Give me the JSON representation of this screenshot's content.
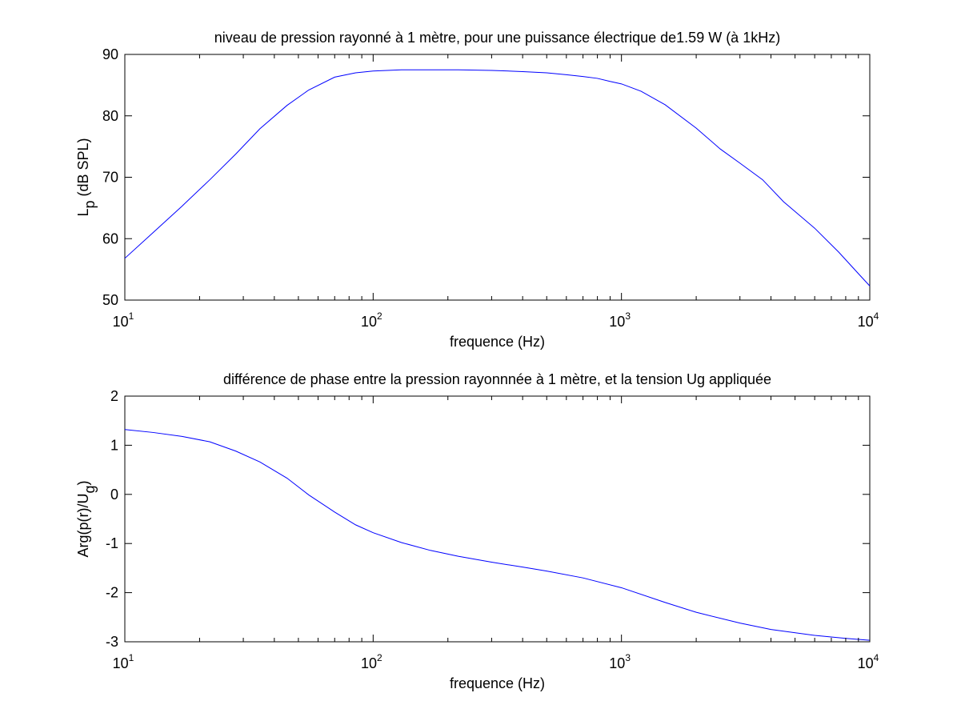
{
  "figure": {
    "background": "#ffffff",
    "axes_background": "#ffffff",
    "line_color": "#0000ff"
  },
  "chart_data": [
    {
      "type": "line",
      "title": "niveau de pression rayonné à 1 mètre, pour une puissance électrique de1.59 W (à  1kHz)",
      "xlabel": "frequence (Hz)",
      "ylabel": {
        "main": "L",
        "sub": "p",
        "rest": " (dB SPL)"
      },
      "xscale": "log",
      "xlim": [
        10,
        10000
      ],
      "ylim": [
        50,
        90
      ],
      "grid": false,
      "xticks": [
        {
          "value": 10,
          "base": "10",
          "exp": "1"
        },
        {
          "value": 100,
          "base": "10",
          "exp": "2"
        },
        {
          "value": 1000,
          "base": "10",
          "exp": "3"
        },
        {
          "value": 10000,
          "base": "10",
          "exp": "4"
        }
      ],
      "yticks": [
        {
          "value": 50,
          "label": "50"
        },
        {
          "value": 60,
          "label": "60"
        },
        {
          "value": 70,
          "label": "70"
        },
        {
          "value": 80,
          "label": "80"
        },
        {
          "value": 90,
          "label": "90"
        }
      ],
      "series": [
        {
          "x": [
            10,
            13,
            17,
            22,
            28,
            35,
            45,
            55,
            70,
            85,
            100,
            130,
            170,
            220,
            300,
            400,
            500,
            600,
            700,
            800,
            900,
            1000,
            1200,
            1500,
            2000,
            2500,
            3000,
            3700,
            4500,
            6000,
            7500,
            9000,
            10000
          ],
          "y": [
            56.8,
            61.0,
            65.3,
            69.6,
            73.8,
            77.9,
            81.7,
            84.2,
            86.3,
            87.0,
            87.3,
            87.5,
            87.5,
            87.5,
            87.4,
            87.2,
            87.0,
            86.7,
            86.4,
            86.1,
            85.6,
            85.2,
            84.0,
            81.8,
            78.0,
            74.6,
            72.3,
            69.6,
            66.0,
            61.7,
            57.8,
            54.3,
            52.3
          ]
        }
      ]
    },
    {
      "type": "line",
      "title": "différence de phase entre la pression rayonnnée à 1 mètre, et la tension Ug appliquée",
      "xlabel": "frequence (Hz)",
      "ylabel": {
        "main": "Arg(p(r)/U",
        "sub": "g",
        "rest": ")"
      },
      "xscale": "log",
      "xlim": [
        10,
        10000
      ],
      "ylim": [
        -3,
        2
      ],
      "grid": false,
      "xticks": [
        {
          "value": 10,
          "base": "10",
          "exp": "1"
        },
        {
          "value": 100,
          "base": "10",
          "exp": "2"
        },
        {
          "value": 1000,
          "base": "10",
          "exp": "3"
        },
        {
          "value": 10000,
          "base": "10",
          "exp": "4"
        }
      ],
      "yticks": [
        {
          "value": -3,
          "label": "-3"
        },
        {
          "value": -2,
          "label": "-2"
        },
        {
          "value": -1,
          "label": "-1"
        },
        {
          "value": 0,
          "label": "0"
        },
        {
          "value": 1,
          "label": "1"
        },
        {
          "value": 2,
          "label": "2"
        }
      ],
      "series": [
        {
          "x": [
            10,
            13,
            17,
            22,
            28,
            35,
            45,
            55,
            70,
            85,
            100,
            130,
            170,
            220,
            300,
            400,
            500,
            700,
            1000,
            1500,
            2000,
            3000,
            4000,
            6000,
            8000,
            10000
          ],
          "y": [
            1.32,
            1.26,
            1.18,
            1.07,
            0.88,
            0.66,
            0.33,
            -0.01,
            -0.36,
            -0.62,
            -0.78,
            -0.98,
            -1.14,
            -1.26,
            -1.38,
            -1.48,
            -1.56,
            -1.7,
            -1.9,
            -2.2,
            -2.4,
            -2.62,
            -2.75,
            -2.87,
            -2.93,
            -2.97
          ]
        }
      ]
    }
  ]
}
